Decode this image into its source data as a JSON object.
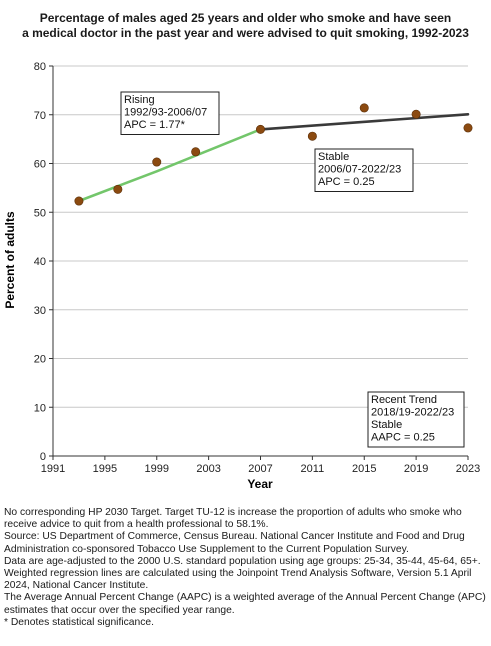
{
  "chart_data": {
    "type": "scatter",
    "title_lines": [
      "Percentage of males aged 25 years and older who smoke and have seen",
      "a medical doctor in the past year and were advised to quit smoking, 1992-2023"
    ],
    "xlabel": "Year",
    "ylabel": "Percent of adults",
    "xlim": [
      1991,
      2023
    ],
    "ylim": [
      0,
      80
    ],
    "x_ticks": [
      1991,
      1995,
      1999,
      2003,
      2007,
      2011,
      2015,
      2019,
      2023
    ],
    "y_ticks": [
      0,
      10,
      20,
      30,
      40,
      50,
      60,
      70,
      80
    ],
    "grid": true,
    "points": {
      "x": [
        1993,
        1996,
        1999,
        2002,
        2007,
        2011,
        2015,
        2019,
        2023
      ],
      "y": [
        52.3,
        54.7,
        60.3,
        62.4,
        67.0,
        65.6,
        71.4,
        70.1,
        67.3
      ]
    },
    "trend_segments": [
      {
        "x": [
          1993,
          1999,
          2007
        ],
        "y": [
          52.3,
          58.4,
          67.0
        ],
        "color": "#73c66b"
      },
      {
        "x": [
          2007,
          2023
        ],
        "y": [
          67.0,
          70.1
        ],
        "color": "#3a3a3a"
      }
    ],
    "point_color": "#8b4a10",
    "annotations": [
      {
        "lines": [
          "Rising",
          "1992/93-2006/07",
          "APC =  1.77*"
        ]
      },
      {
        "lines": [
          "Stable",
          "2006/07-2022/23",
          "APC =  0.25"
        ]
      },
      {
        "lines": [
          "Recent Trend",
          "2018/19-2022/23",
          "Stable",
          "AAPC =  0.25"
        ]
      }
    ]
  },
  "footnotes": [
    "No corresponding HP 2030 Target. Target TU-12 is increase the proportion of adults who smoke who receive advice to quit from a health professional to 58.1%.",
    "Source: US Department of Commerce, Census Bureau. National Cancer Institute and Food and Drug Administration co-sponsored Tobacco Use Supplement to the Current Population Survey.",
    "Data are age-adjusted to the 2000 U.S. standard population using age groups: 25-34, 35-44, 45-64, 65+.",
    "Weighted regression lines are calculated using the Joinpoint Trend Analysis Software, Version 5.1 April 2024, National Cancer Institute.",
    "The Average Annual Percent Change (AAPC) is a weighted average of the Annual Percent Change (APC) estimates that occur over the specified year range.",
    "* Denotes statistical significance."
  ]
}
